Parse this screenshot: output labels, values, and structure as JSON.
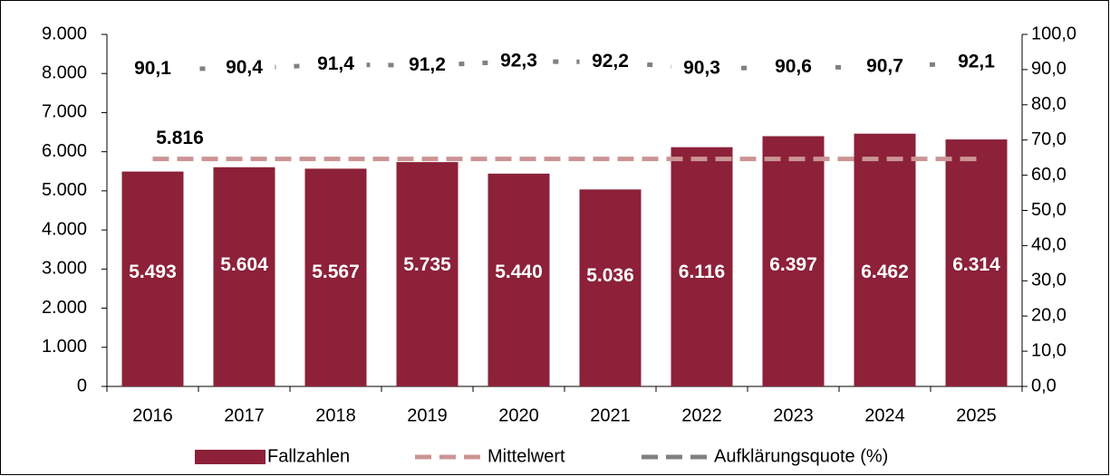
{
  "chart_data": {
    "type": "bar",
    "categories": [
      "2016",
      "2017",
      "2018",
      "2019",
      "2020",
      "2021",
      "2022",
      "2023",
      "2024",
      "2025"
    ],
    "series": [
      {
        "name": "Fallzahlen",
        "type": "bar",
        "color": "#8c2139",
        "values": [
          5493,
          5604,
          5567,
          5735,
          5440,
          5036,
          6116,
          6397,
          6462,
          6314
        ],
        "value_labels": [
          "5.493",
          "5.604",
          "5.567",
          "5.735",
          "5.440",
          "5.036",
          "6.116",
          "6.397",
          "6.462",
          "6.314"
        ]
      },
      {
        "name": "Mittelwert",
        "type": "line",
        "color": "#cc9494",
        "values": [
          5816,
          5816,
          5816,
          5816,
          5816,
          5816,
          5816,
          5816,
          5816,
          5816
        ],
        "value_labels": [
          "5.816",
          null,
          null,
          null,
          null,
          null,
          null,
          null,
          null,
          null
        ]
      },
      {
        "name": "Aufklärungsquote (%)",
        "type": "line",
        "axis": "y2",
        "color": "#808080",
        "values": [
          90.1,
          90.4,
          91.4,
          91.2,
          92.3,
          92.2,
          90.3,
          90.6,
          90.7,
          92.1
        ],
        "value_labels": [
          "90,1",
          "90,4",
          "91,4",
          "91,2",
          "92,3",
          "92,2",
          "90,3",
          "90,6",
          "90,7",
          "92,1"
        ]
      }
    ],
    "ylim": [
      0,
      9000
    ],
    "yticks": [
      0,
      {
        "value": 1000,
        "label": "1.000"
      },
      {
        "value": 2000,
        "label": "2.000"
      },
      {
        "value": 3000,
        "label": "3.000"
      },
      {
        "value": 4000,
        "label": "4.000"
      },
      {
        "value": 5000,
        "label": "5.000"
      },
      {
        "value": 6000,
        "label": "6.000"
      },
      {
        "value": 7000,
        "label": "7.000"
      },
      {
        "value": 8000,
        "label": "8.000"
      },
      {
        "value": 9000,
        "label": "9.000"
      }
    ],
    "y2lim": [
      0,
      100
    ],
    "y2ticks": [
      {
        "value": 0,
        "label": "0,0"
      },
      {
        "value": 10,
        "label": "10,0"
      },
      {
        "value": 20,
        "label": "20,0"
      },
      {
        "value": 30,
        "label": "30,0"
      },
      {
        "value": 40,
        "label": "40,0"
      },
      {
        "value": 50,
        "label": "50,0"
      },
      {
        "value": 60,
        "label": "60,0"
      },
      {
        "value": 70,
        "label": "70,0"
      },
      {
        "value": 80,
        "label": "80,0"
      },
      {
        "value": 90,
        "label": "90,0"
      },
      {
        "value": 100,
        "label": "100,0"
      }
    ],
    "grid": false,
    "legend": "bottom"
  }
}
